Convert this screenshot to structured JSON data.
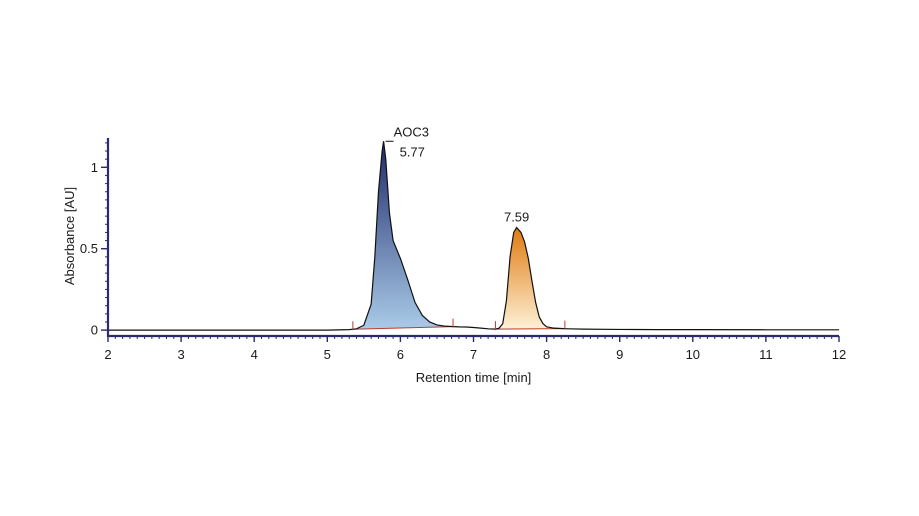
{
  "chart_data": {
    "type": "line",
    "xlabel": "Retention time [min]",
    "ylabel": "Absorbance [AU]",
    "xlim": [
      2,
      12
    ],
    "ylim": [
      -0.03,
      1.18
    ],
    "x_ticks": [
      2,
      3,
      4,
      5,
      6,
      7,
      8,
      9,
      10,
      11,
      12
    ],
    "y_ticks": [
      0,
      0.5,
      1
    ],
    "y_tick_labels": [
      "0",
      "0.5",
      "1"
    ],
    "grid": false,
    "series": [
      {
        "x": [
          2.0,
          3.0,
          4.0,
          5.0,
          5.3,
          5.4,
          5.5,
          5.6,
          5.65,
          5.7,
          5.75,
          5.77,
          5.8,
          5.85,
          5.9,
          6.0,
          6.1,
          6.2,
          6.3,
          6.4,
          6.5,
          6.6,
          6.7,
          6.8,
          6.9,
          7.0,
          7.1,
          7.2,
          7.3,
          7.35,
          7.4,
          7.45,
          7.5,
          7.55,
          7.59,
          7.65,
          7.7,
          7.75,
          7.8,
          7.85,
          7.9,
          7.95,
          8.0,
          8.1,
          8.2,
          8.3,
          8.5,
          9.0,
          9.5,
          10.0,
          11.0,
          12.0
        ],
        "y": [
          0.0,
          0.0,
          0.0,
          0.0,
          0.003,
          0.008,
          0.03,
          0.16,
          0.45,
          0.85,
          1.1,
          1.16,
          1.05,
          0.72,
          0.55,
          0.44,
          0.31,
          0.17,
          0.09,
          0.05,
          0.032,
          0.025,
          0.022,
          0.02,
          0.019,
          0.016,
          0.012,
          0.008,
          0.006,
          0.012,
          0.04,
          0.18,
          0.45,
          0.6,
          0.63,
          0.6,
          0.54,
          0.44,
          0.3,
          0.17,
          0.08,
          0.04,
          0.02,
          0.012,
          0.01,
          0.008,
          0.006,
          0.004,
          0.003,
          0.003,
          0.002,
          0.002
        ],
        "color": "#111111"
      }
    ],
    "peaks": [
      {
        "name": "AOC3",
        "label": "5.77",
        "retention_time": 5.77,
        "height": 1.16,
        "start": 5.35,
        "end": 6.72,
        "fill_top": "#1f2a6b",
        "fill_bottom": "#a9cbe8"
      },
      {
        "name": "",
        "label": "7.59",
        "retention_time": 7.59,
        "height": 0.63,
        "start": 7.3,
        "end": 8.25,
        "fill_top": "#e07a10",
        "fill_bottom": "#fdf1d6"
      }
    ],
    "colors": {
      "axis": "#2b2a6e",
      "baseline_marker": "#c0392b",
      "trace": "#111111"
    }
  }
}
